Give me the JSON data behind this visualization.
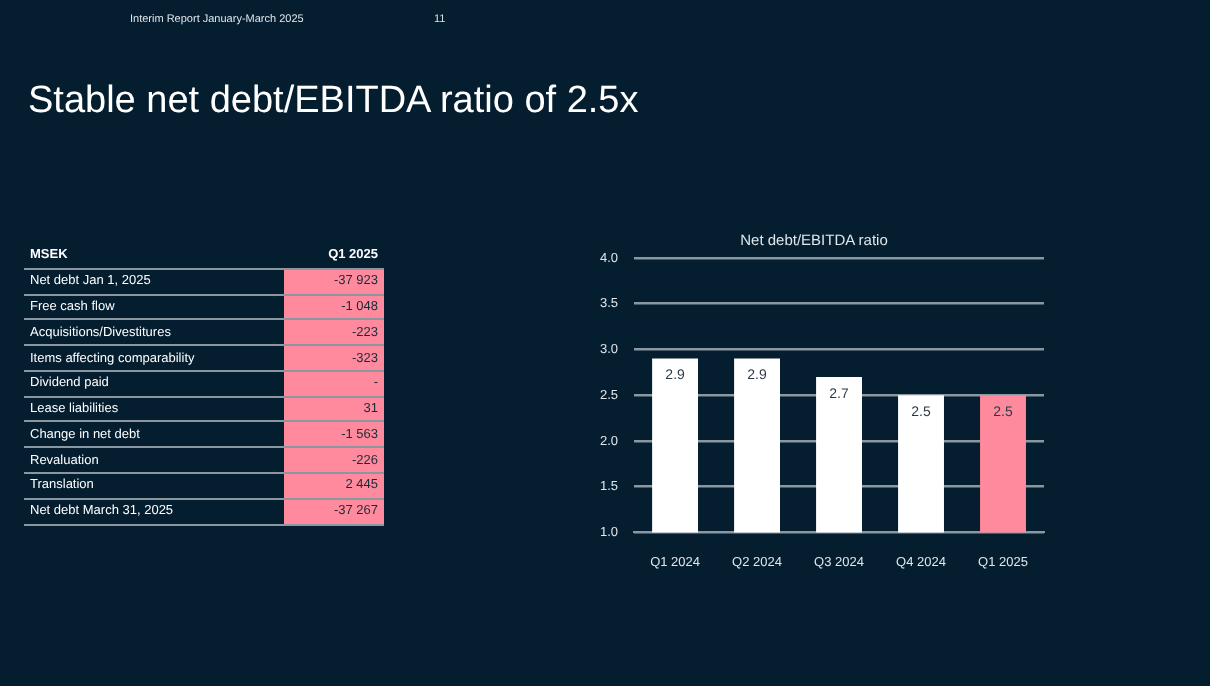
{
  "chart_data": [
    {
      "type": "other",
      "title": "Stable net debt/EBITDA ratio of 2.5x",
      "annotations": [
        "Interim Report January-March 2025",
        "11"
      ],
      "ylabel": "MSEK",
      "color": "#ff8a9e",
      "categories": [
        "Q1 2025"
      ],
      "y_categories": [
        "Net debt Jan 1, 2025",
        "Free cash flow",
        "Acquisitions/Divestitures",
        "Items affecting comparability",
        "Dividend paid",
        "Lease liabilities",
        "Change in net debt",
        "Revaluation",
        "Translation",
        "Net debt March 31, 2025"
      ],
      "cell_labels": [
        [
          "-37 923"
        ],
        [
          "-1 048"
        ],
        [
          "-223"
        ],
        [
          "-323"
        ],
        [
          "-"
        ],
        [
          "31"
        ],
        [
          "-1 563"
        ],
        [
          "-226"
        ],
        [
          "2 445"
        ],
        [
          "-37 267"
        ]
      ]
    },
    {
      "type": "bar",
      "title": "Net debt/EBITDA ratio",
      "categories": [
        "Q1 2024",
        "Q2 2024",
        "Q3 2024",
        "Q4 2024",
        "Q1 2025"
      ],
      "values": [
        2.9,
        2.9,
        2.7,
        2.5,
        2.5
      ],
      "colors": [
        "#ffffff",
        "#ffffff",
        "#ffffff",
        "#ffffff",
        "#ff8a9e"
      ],
      "ylim": [
        1,
        4
      ],
      "yticks": [
        {
          "value": 1,
          "label": "1.0"
        },
        {
          "value": 1.5,
          "label": "1.5"
        },
        {
          "value": 2,
          "label": "2.0"
        },
        {
          "value": 2.5,
          "label": "2.5"
        },
        {
          "value": 3,
          "label": "3.0"
        },
        {
          "value": 3.5,
          "label": "3.5"
        },
        {
          "value": 4,
          "label": "4.0"
        }
      ],
      "grid": "y",
      "legend": false,
      "data_labels": true
    }
  ]
}
